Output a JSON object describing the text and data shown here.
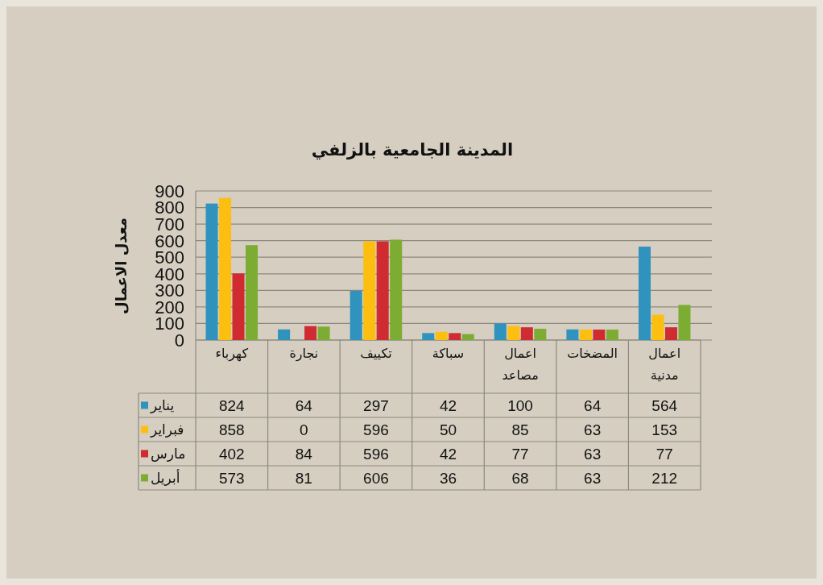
{
  "chart_data": {
    "type": "bar",
    "title": "المدينة الجامعية بالزلفي",
    "ylabel": "معدل الاعمال",
    "categories": [
      "كهرباء",
      "نجارة",
      "تكييف",
      "سباكة",
      "اعمال مصاعد",
      "المضخات",
      "اعمال مدنية"
    ],
    "series": [
      {
        "name": "يناير",
        "color": "#2f93bd",
        "values": [
          824,
          64,
          297,
          42,
          100,
          64,
          564
        ]
      },
      {
        "name": "فبراير",
        "color": "#fdbf0f",
        "values": [
          858,
          0,
          596,
          50,
          85,
          63,
          153
        ]
      },
      {
        "name": "مارس",
        "color": "#cf2b30",
        "values": [
          402,
          84,
          596,
          42,
          77,
          63,
          77
        ]
      },
      {
        "name": "أبريل",
        "color": "#7cad32",
        "values": [
          573,
          81,
          606,
          36,
          68,
          63,
          212
        ]
      }
    ],
    "ylim": [
      0,
      900
    ],
    "yticks": [
      0,
      100,
      200,
      300,
      400,
      500,
      600,
      700,
      800,
      900
    ],
    "grid": "y",
    "legend": "bottom",
    "data_labels": true
  }
}
